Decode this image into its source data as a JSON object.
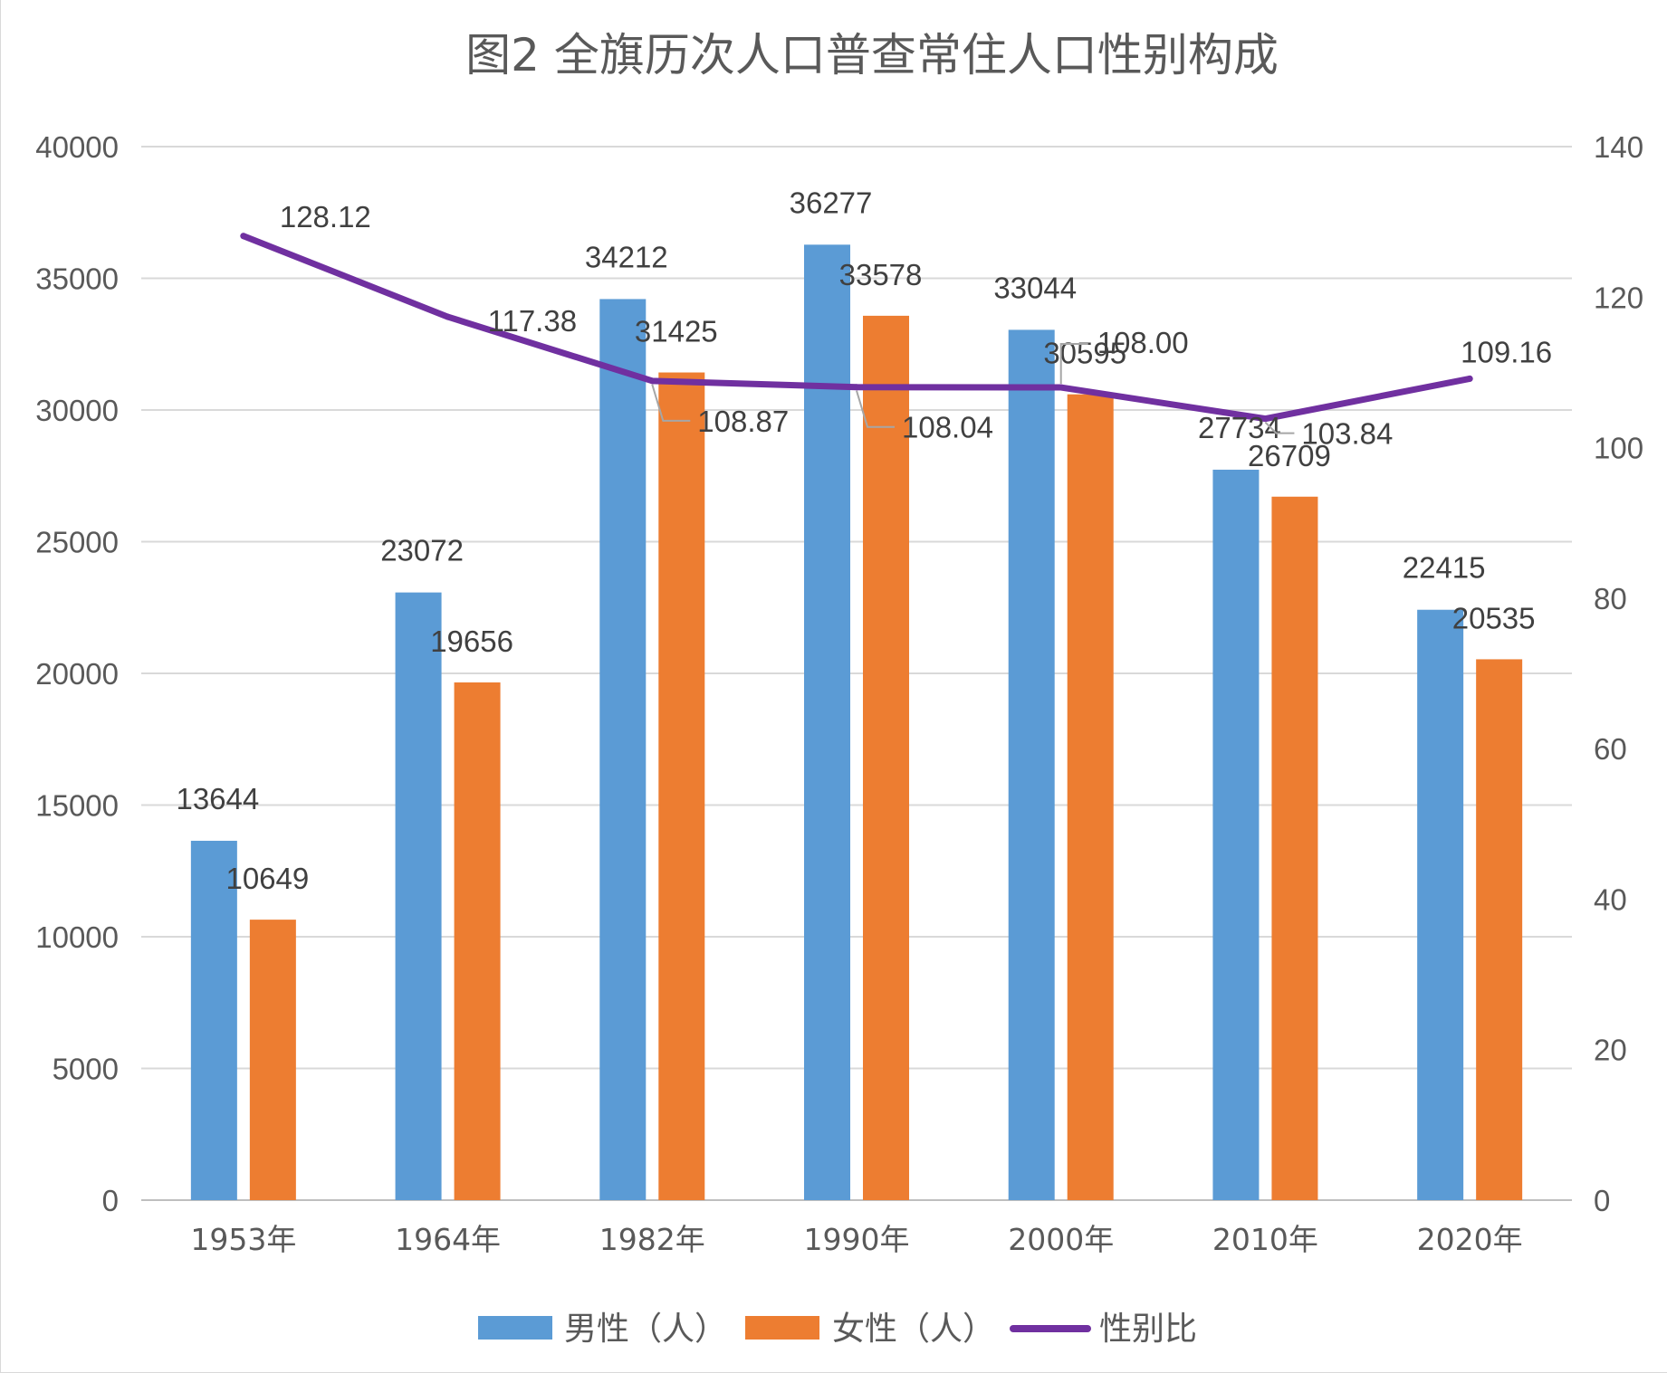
{
  "chart_data": {
    "type": "bar",
    "title": "图2 全旗历次人口普查常住人口性别构成",
    "categories": [
      "1953年",
      "1964年",
      "1982年",
      "1990年",
      "2000年",
      "2010年",
      "2020年"
    ],
    "series": [
      {
        "name": "男性（人）",
        "type": "bar",
        "axis": "left",
        "color": "#5b9bd5",
        "values": [
          13644,
          23072,
          34212,
          36277,
          33044,
          27734,
          22415
        ],
        "labels": [
          "13644",
          "23072",
          "34212",
          "36277",
          "33044",
          "27734",
          "22415"
        ]
      },
      {
        "name": "女性（人）",
        "type": "bar",
        "axis": "left",
        "color": "#ed7d31",
        "values": [
          10649,
          19656,
          31425,
          33578,
          30595,
          26709,
          20535
        ],
        "labels": [
          "10649",
          "19656",
          "31425",
          "33578",
          "30595",
          "26709",
          "20535"
        ]
      },
      {
        "name": "性别比",
        "type": "line",
        "axis": "right",
        "color": "#7030a0",
        "values": [
          128.12,
          117.38,
          108.87,
          108.04,
          108.0,
          103.84,
          109.16
        ],
        "labels": [
          "128.12",
          "117.38",
          "108.87",
          "108.04",
          "108.00",
          "103.84",
          "109.16"
        ]
      }
    ],
    "y_left": {
      "range": [
        0,
        40000
      ],
      "ticks": [
        "0",
        "5000",
        "10000",
        "15000",
        "20000",
        "25000",
        "30000",
        "35000",
        "40000"
      ]
    },
    "y_right": {
      "range": [
        0,
        140
      ],
      "ticks": [
        "0",
        "20",
        "40",
        "60",
        "80",
        "100",
        "120",
        "140"
      ]
    },
    "grid": true,
    "legend_position": "bottom"
  }
}
